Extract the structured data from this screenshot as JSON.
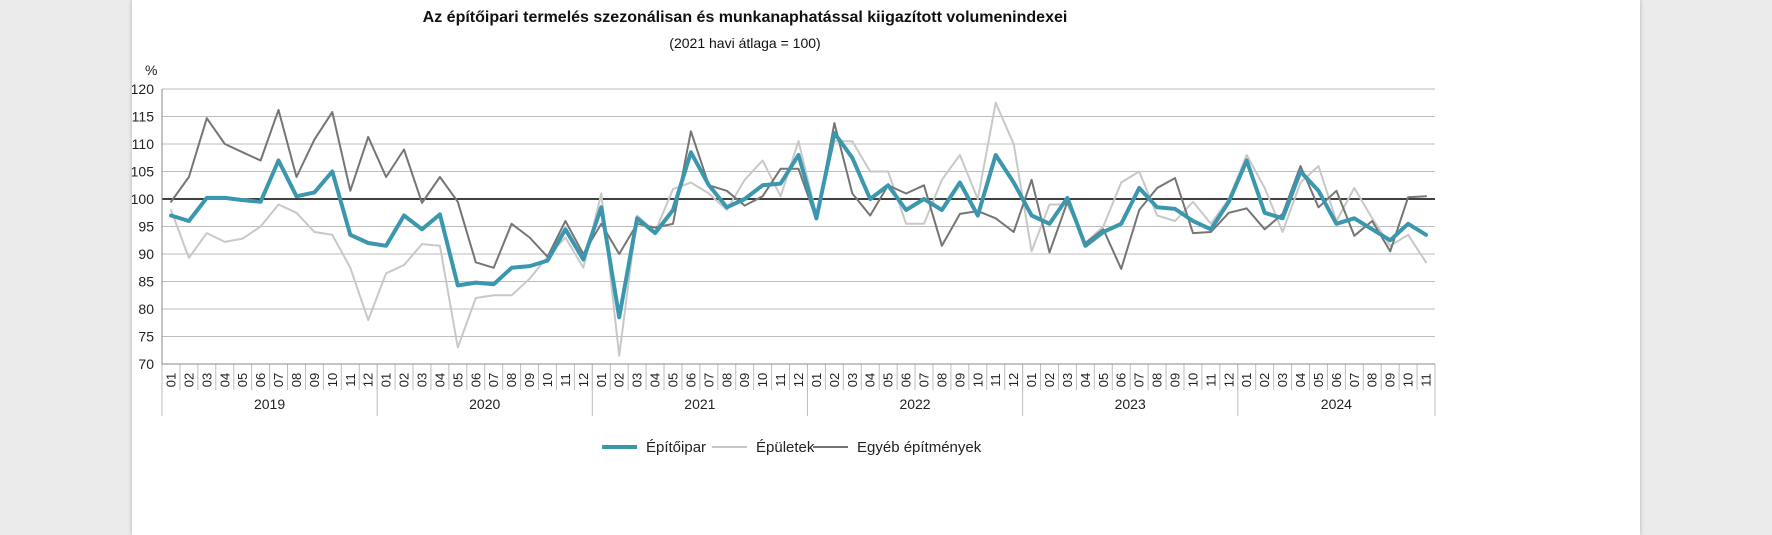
{
  "chart_data": {
    "type": "line",
    "title": "Az építőipari termelés szezonálisan és munkanaphatással kiigazított volumenindexei",
    "subtitle": "(2021 havi átlaga = 100)",
    "ylabel": "%",
    "ylim": [
      70,
      120
    ],
    "yticks": [
      70,
      75,
      80,
      85,
      90,
      95,
      100,
      105,
      110,
      115,
      120
    ],
    "reference_line": 100,
    "grid": true,
    "legend_position": "bottom",
    "years": [
      "2019",
      "2020",
      "2021",
      "2022",
      "2023",
      "2024"
    ],
    "months": [
      "01",
      "02",
      "03",
      "04",
      "05",
      "06",
      "07",
      "08",
      "09",
      "10",
      "11",
      "12"
    ],
    "x_count": 71,
    "series": [
      {
        "name": "Építőipar",
        "color": "#3b97ae",
        "values": [
          97,
          96,
          100.2,
          100.2,
          99.8,
          99.5,
          107,
          100.5,
          101.2,
          105,
          93.5,
          92,
          91.5,
          97,
          94.5,
          97.2,
          84.3,
          84.8,
          84.5,
          87.5,
          87.8,
          88.8,
          94.5,
          89,
          98.5,
          78.5,
          96.5,
          93.8,
          98,
          108.5,
          102.5,
          98.5,
          100,
          102.5,
          102.8,
          108,
          96.5,
          112,
          107.5,
          100,
          102.5,
          98,
          100,
          98,
          103,
          97,
          108,
          103,
          97,
          95.5,
          100.2,
          91.5,
          94,
          95.5,
          102,
          98.5,
          98.2,
          96,
          94.5,
          99.5,
          107,
          97.5,
          96.5,
          105,
          101.5,
          95.5,
          96.5,
          94.5,
          92.5,
          95.5,
          93.5
        ]
      },
      {
        "name": "Épületek",
        "color": "#c8c8c8",
        "values": [
          98,
          89.3,
          93.8,
          92.2,
          92.8,
          95,
          99,
          97.5,
          94,
          93.5,
          87.5,
          78,
          86.5,
          88,
          91.8,
          91.5,
          73,
          82,
          82.5,
          82.5,
          85.5,
          89.5,
          93,
          87.5,
          101,
          71.5,
          97,
          94,
          101.8,
          103,
          101,
          98,
          103.5,
          107,
          100.5,
          110.5,
          97,
          110.5,
          110.5,
          105,
          105,
          95.5,
          95.5,
          103.5,
          108,
          100,
          117.5,
          110,
          90.5,
          99,
          99,
          92,
          95,
          103,
          105,
          97,
          96,
          99.5,
          95.5,
          100,
          108,
          102,
          94,
          103,
          106,
          96,
          102,
          96.5,
          91.5,
          93.5,
          88.5
        ]
      },
      {
        "name": "Egyéb építmények",
        "color": "#757575",
        "values": [
          99.5,
          104,
          114.7,
          110,
          108.5,
          107,
          116.2,
          104,
          110.8,
          115.8,
          101.5,
          111.3,
          104,
          109,
          99.3,
          104,
          99.5,
          88.5,
          87.5,
          95.5,
          93,
          89.5,
          96,
          90,
          95.5,
          90,
          95.5,
          94.8,
          95.5,
          112.3,
          102.5,
          101.5,
          98.8,
          100.5,
          105.5,
          105.5,
          96.3,
          113.8,
          101,
          97,
          102.5,
          101,
          102.5,
          91.5,
          97.3,
          97.8,
          96.5,
          94,
          103.5,
          90.3,
          99.5,
          92,
          94.5,
          87.3,
          98,
          102,
          103.8,
          93.8,
          94,
          97.5,
          98.3,
          94.5,
          97.3,
          106,
          98.5,
          101.5,
          93.3,
          96,
          90.5,
          100.3,
          100.5
        ]
      }
    ]
  }
}
